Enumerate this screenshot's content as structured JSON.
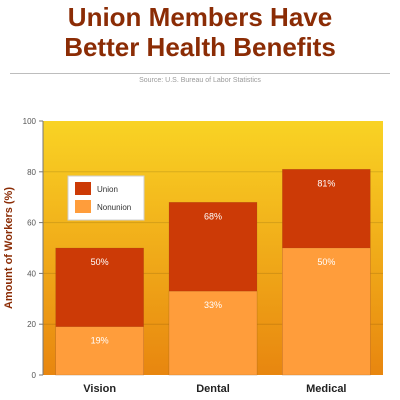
{
  "title_line1": "Union Members Have",
  "title_line2": "Better Health Benefits",
  "source": "Source: U.S. Bureau of Labor Statistics",
  "colors": {
    "union": "#cc3a06",
    "nonunion": "#ff9d3b",
    "title": "#8b2c05",
    "plot_top": "#f9d324",
    "plot_bottom": "#e8860f"
  },
  "chart_data": {
    "type": "bar",
    "stacked": "overlay",
    "categories": [
      "Vision",
      "Dental",
      "Medical"
    ],
    "series": [
      {
        "name": "Union",
        "values": [
          50,
          68,
          81
        ],
        "labels": [
          "50%",
          "68%",
          "81%"
        ]
      },
      {
        "name": "Nonunion",
        "values": [
          19,
          33,
          50
        ],
        "labels": [
          "19%",
          "33%",
          "50%"
        ]
      }
    ],
    "ylabel": "Amount of Workers (%)",
    "ylim": [
      0,
      100
    ],
    "yticks": [
      "0",
      "20",
      "40",
      "60",
      "80",
      "100"
    ],
    "legend": "top-left"
  }
}
